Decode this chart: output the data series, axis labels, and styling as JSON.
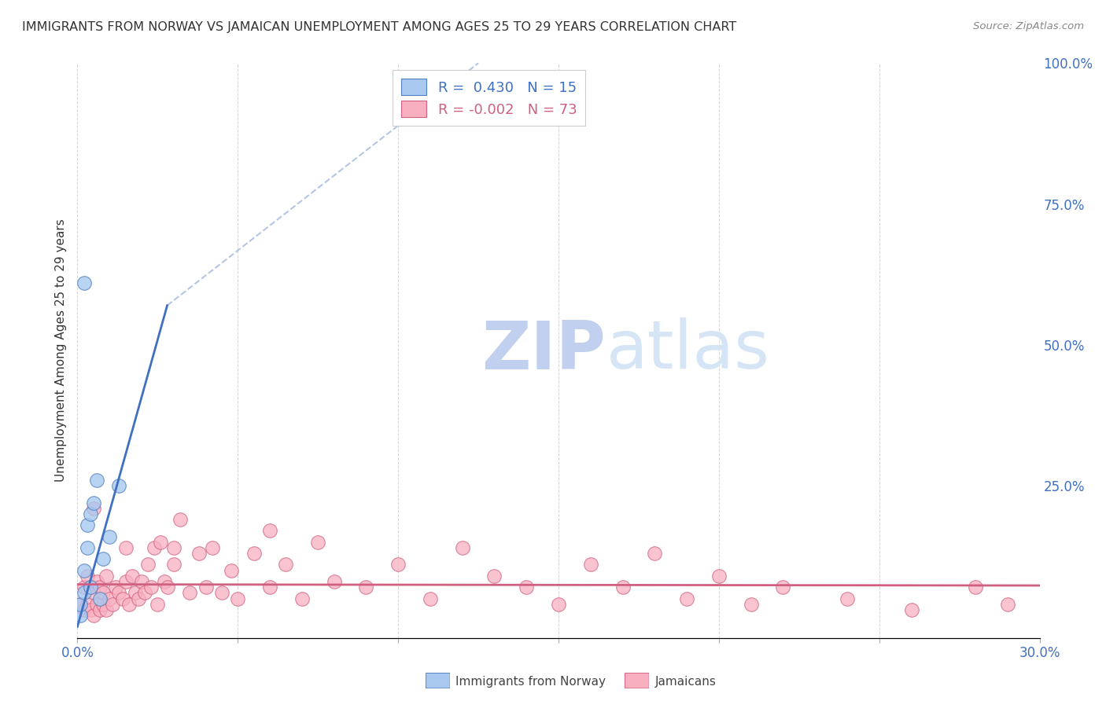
{
  "title": "IMMIGRANTS FROM NORWAY VS JAMAICAN UNEMPLOYMENT AMONG AGES 25 TO 29 YEARS CORRELATION CHART",
  "source": "Source: ZipAtlas.com",
  "ylabel": "Unemployment Among Ages 25 to 29 years",
  "xlim": [
    0.0,
    0.3
  ],
  "ylim": [
    -0.02,
    1.0
  ],
  "xticks": [
    0.0,
    0.05,
    0.1,
    0.15,
    0.2,
    0.25,
    0.3
  ],
  "xtick_labels": [
    "0.0%",
    "",
    "",
    "",
    "",
    "",
    "30.0%"
  ],
  "yticks_right": [
    0.0,
    0.25,
    0.5,
    0.75,
    1.0
  ],
  "ytick_labels_right": [
    "",
    "25.0%",
    "50.0%",
    "75.0%",
    "100.0%"
  ],
  "norway_fill_color": "#a8c8f0",
  "norway_edge_color": "#5080c0",
  "jamaica_fill_color": "#f8b0c0",
  "jamaica_edge_color": "#d06080",
  "norway_line_color": "#4070c0",
  "jamaica_line_color": "#d06080",
  "norway_dash_color": "#a0b8e0",
  "norway_R": 0.43,
  "norway_N": 15,
  "jamaica_R": -0.002,
  "jamaica_N": 73,
  "watermark_zip": "ZIP",
  "watermark_atlas": "atlas",
  "watermark_color": "#d0dff5",
  "norway_scatter_x": [
    0.001,
    0.001,
    0.002,
    0.002,
    0.003,
    0.003,
    0.004,
    0.004,
    0.005,
    0.006,
    0.007,
    0.008,
    0.01,
    0.013,
    0.002
  ],
  "norway_scatter_y": [
    0.02,
    0.04,
    0.06,
    0.1,
    0.14,
    0.18,
    0.2,
    0.07,
    0.22,
    0.26,
    0.05,
    0.12,
    0.16,
    0.25,
    0.61
  ],
  "jamaica_scatter_x": [
    0.001,
    0.002,
    0.002,
    0.003,
    0.003,
    0.004,
    0.004,
    0.005,
    0.005,
    0.006,
    0.006,
    0.007,
    0.007,
    0.008,
    0.008,
    0.009,
    0.009,
    0.01,
    0.011,
    0.012,
    0.013,
    0.014,
    0.015,
    0.015,
    0.016,
    0.017,
    0.018,
    0.019,
    0.02,
    0.021,
    0.022,
    0.023,
    0.024,
    0.025,
    0.026,
    0.027,
    0.028,
    0.03,
    0.032,
    0.035,
    0.038,
    0.04,
    0.042,
    0.045,
    0.048,
    0.05,
    0.055,
    0.06,
    0.065,
    0.07,
    0.075,
    0.08,
    0.09,
    0.1,
    0.11,
    0.12,
    0.13,
    0.14,
    0.15,
    0.16,
    0.17,
    0.18,
    0.19,
    0.2,
    0.21,
    0.22,
    0.24,
    0.26,
    0.28,
    0.29,
    0.005,
    0.03,
    0.06
  ],
  "jamaica_scatter_y": [
    0.04,
    0.03,
    0.07,
    0.04,
    0.09,
    0.03,
    0.07,
    0.02,
    0.06,
    0.04,
    0.08,
    0.03,
    0.07,
    0.04,
    0.06,
    0.03,
    0.09,
    0.05,
    0.04,
    0.07,
    0.06,
    0.05,
    0.08,
    0.14,
    0.04,
    0.09,
    0.06,
    0.05,
    0.08,
    0.06,
    0.11,
    0.07,
    0.14,
    0.04,
    0.15,
    0.08,
    0.07,
    0.11,
    0.19,
    0.06,
    0.13,
    0.07,
    0.14,
    0.06,
    0.1,
    0.05,
    0.13,
    0.07,
    0.11,
    0.05,
    0.15,
    0.08,
    0.07,
    0.11,
    0.05,
    0.14,
    0.09,
    0.07,
    0.04,
    0.11,
    0.07,
    0.13,
    0.05,
    0.09,
    0.04,
    0.07,
    0.05,
    0.03,
    0.07,
    0.04,
    0.21,
    0.14,
    0.17
  ],
  "norway_regline_x0": 0.0,
  "norway_regline_y0": 0.0,
  "norway_regline_x1": 0.028,
  "norway_regline_y1": 0.57,
  "norway_dashline_x0": 0.028,
  "norway_dashline_y0": 0.57,
  "norway_dashline_x1": 0.125,
  "norway_dashline_y1": 1.0,
  "jamaica_regline_x0": 0.0,
  "jamaica_regline_y0": 0.075,
  "jamaica_regline_x1": 0.3,
  "jamaica_regline_y1": 0.073,
  "background_color": "#ffffff",
  "grid_color": "#d0d0d0",
  "title_color": "#333333",
  "source_color": "#888888",
  "axis_label_color": "#333333",
  "tick_color": "#4070c0"
}
